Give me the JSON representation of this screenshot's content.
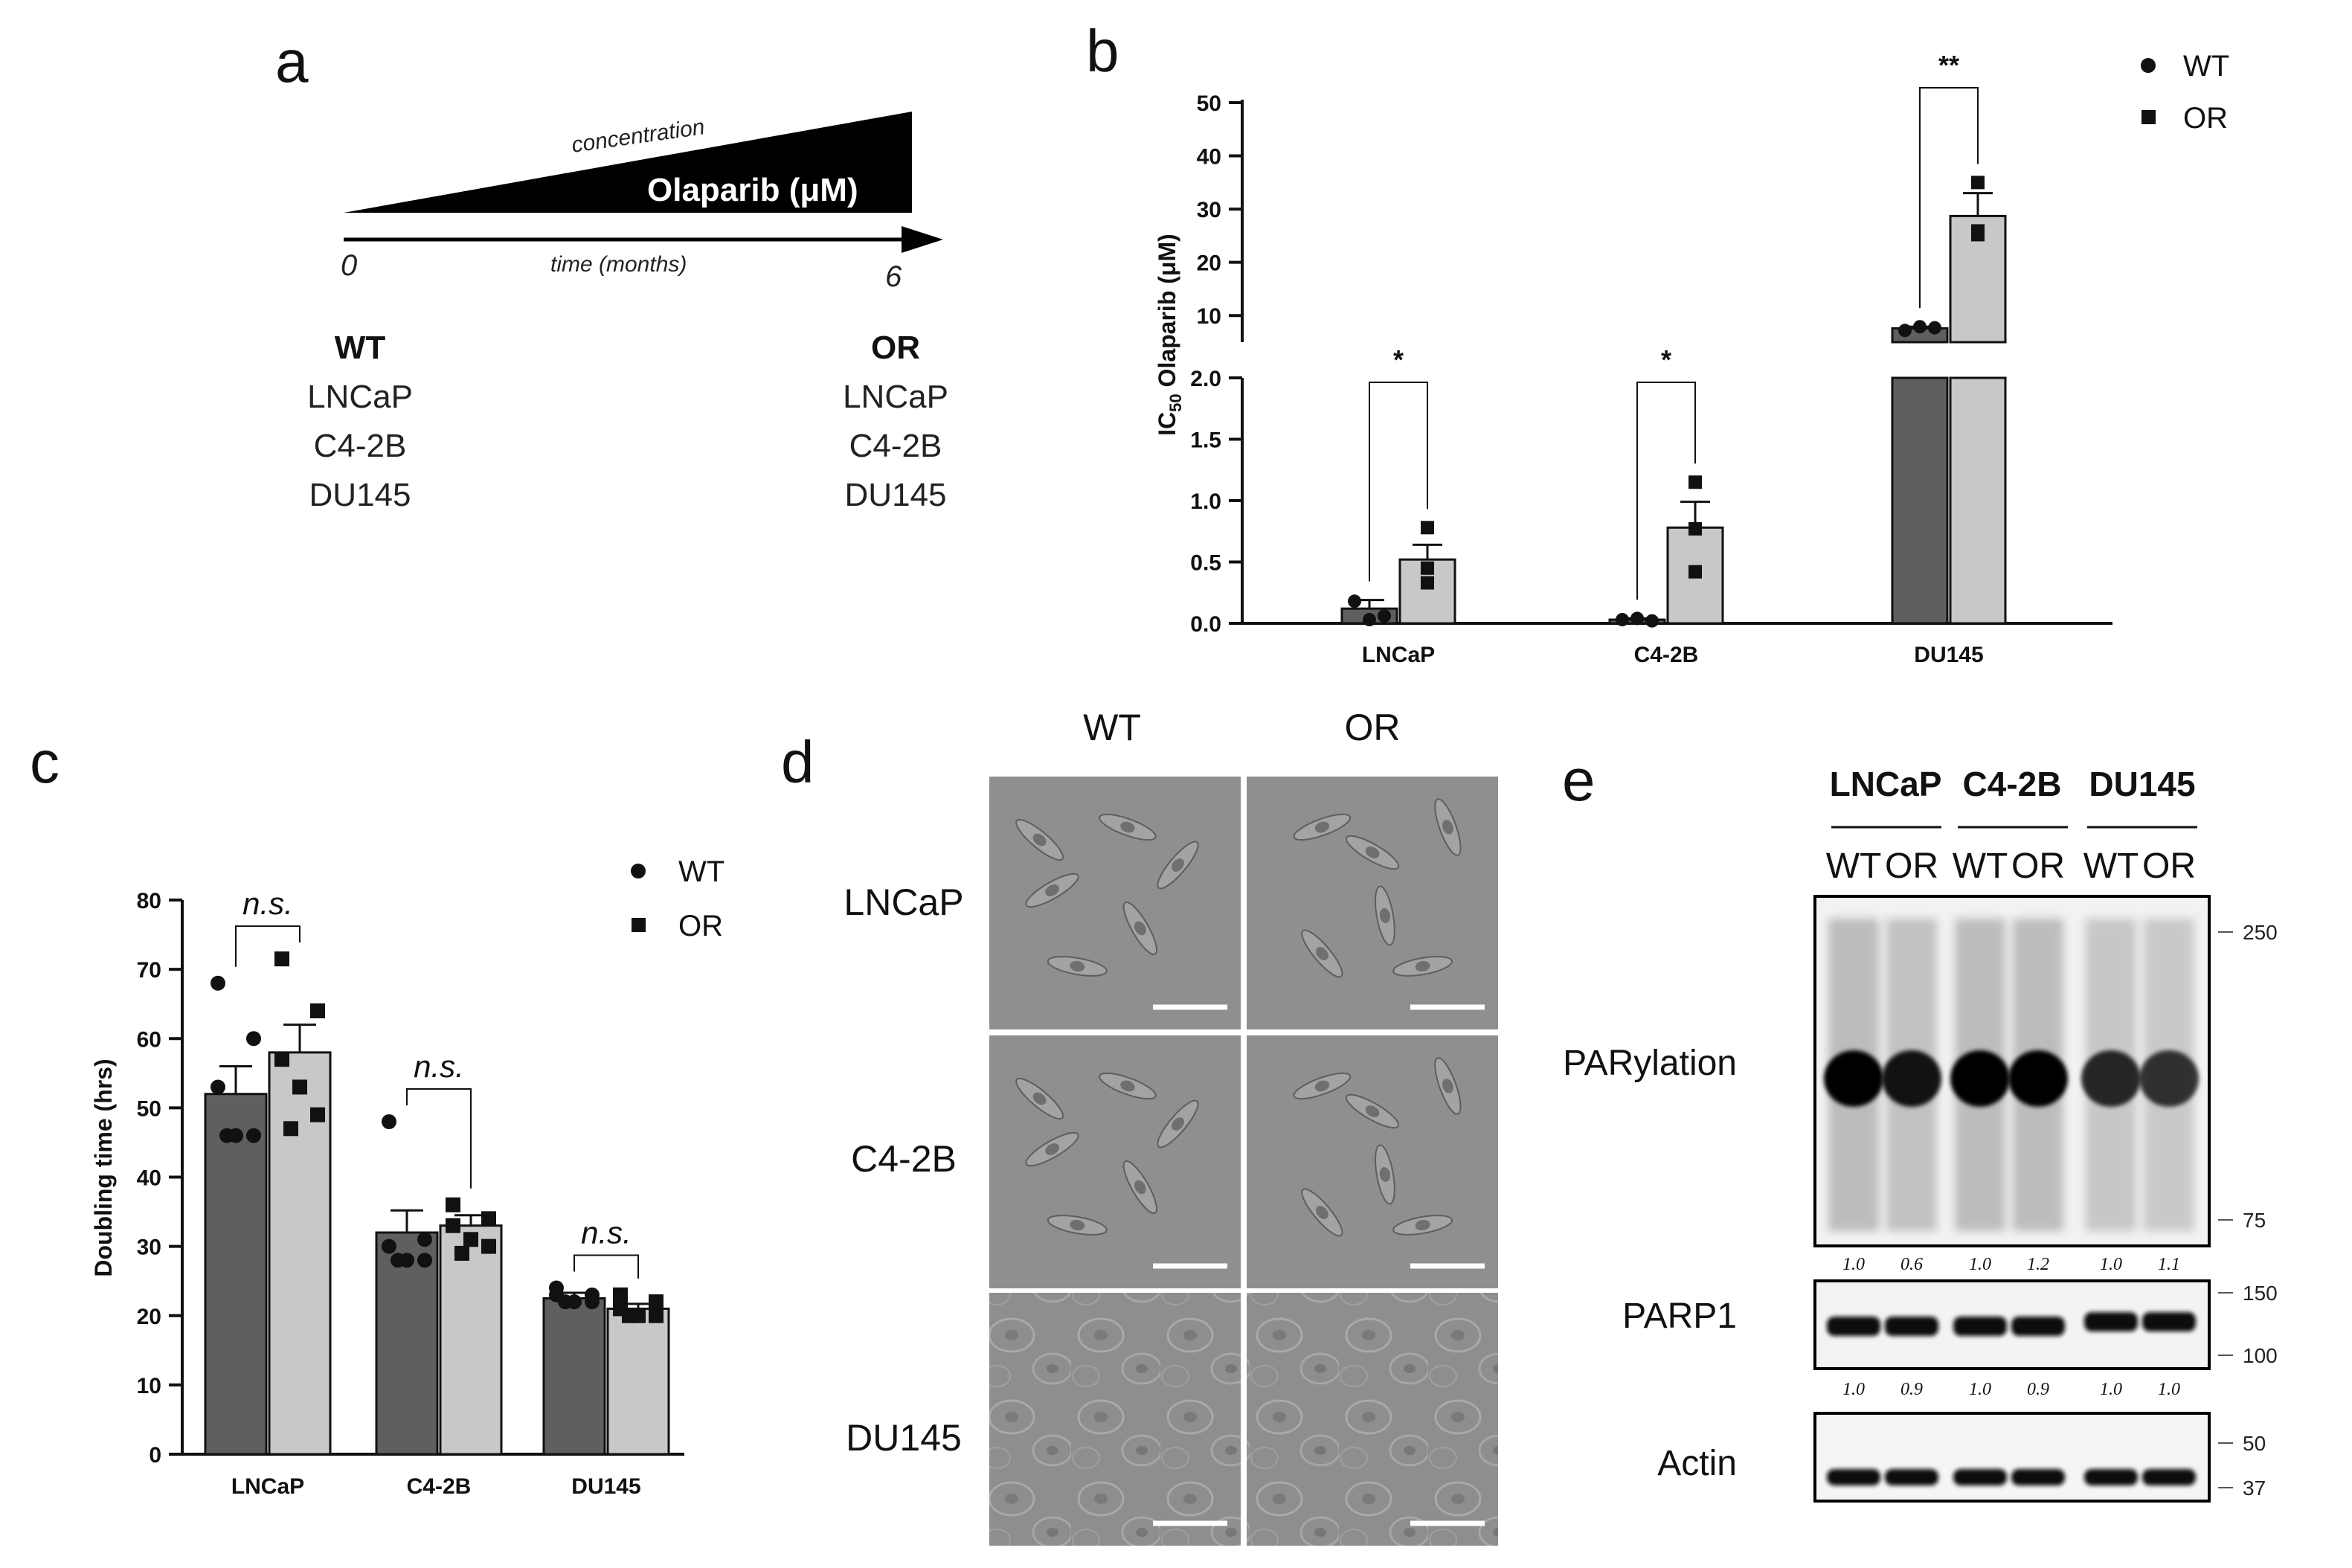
{
  "panel_a": {
    "label": "a",
    "concentration_label": "concentration",
    "drug_label": "Olaparib (μM)",
    "time_label": "time (months)",
    "time_start": "0",
    "time_end": "6",
    "wt_heading": "WT",
    "or_heading": "OR",
    "cell_lines": [
      "LNCaP",
      "C4-2B",
      "DU145"
    ]
  },
  "panel_b": {
    "label": "b",
    "legend": [
      {
        "name": "WT",
        "marker": "circle"
      },
      {
        "name": "OR",
        "marker": "square"
      }
    ],
    "significance": [
      "*",
      "*",
      "**"
    ]
  },
  "panel_c": {
    "label": "c",
    "legend": [
      {
        "name": "WT",
        "marker": "circle"
      },
      {
        "name": "OR",
        "marker": "square"
      }
    ],
    "significance": [
      "n.s.",
      "n.s.",
      "n.s."
    ]
  },
  "panel_d": {
    "label": "d",
    "columns": [
      "WT",
      "OR"
    ],
    "rows": [
      "LNCaP",
      "C4-2B",
      "DU145"
    ]
  },
  "panel_e": {
    "label": "e",
    "cell_lines": [
      "LNCaP",
      "C4-2B",
      "DU145"
    ],
    "lanes": [
      "WT",
      "OR",
      "WT",
      "OR",
      "WT",
      "OR"
    ],
    "blots": [
      {
        "name": "PARylation",
        "quant": [
          "1.0",
          "0.6",
          "1.0",
          "1.2",
          "1.0",
          "1.1"
        ],
        "markers": [
          "250",
          "75"
        ]
      },
      {
        "name": "PARP1",
        "quant": [
          "1.0",
          "0.9",
          "1.0",
          "0.9",
          "1.0",
          "1.0"
        ],
        "markers": [
          "150",
          "100"
        ]
      },
      {
        "name": "Actin",
        "quant": [],
        "markers": [
          "50",
          "37"
        ]
      }
    ]
  },
  "colors": {
    "wt_bar": "#5f5f5f",
    "or_bar": "#c8c8c8",
    "ink": "#111111",
    "micrograph": "#8f8f8f"
  },
  "chart_data": [
    {
      "type": "bar",
      "panel": "b",
      "title": "",
      "xlabel": "",
      "ylabel": "IC50 Olaparib (μM)",
      "ylabel_main": "IC",
      "ylabel_sub": "50",
      "ylabel_rest": " Olaparib (μM)",
      "categories": [
        "LNCaP",
        "C4-2B",
        "DU145"
      ],
      "series": [
        {
          "name": "WT",
          "values": [
            0.12,
            0.03,
            7.6
          ],
          "errors": [
            0.07,
            0.01,
            0.3
          ],
          "points": [
            [
              0.18,
              0.03,
              0.06
            ],
            [
              0.03,
              0.04,
              0.02
            ],
            [
              7.2,
              7.9,
              7.7
            ]
          ]
        },
        {
          "name": "OR",
          "values": [
            0.52,
            0.78,
            28.7
          ],
          "errors": [
            0.12,
            0.21,
            4.3
          ],
          "points": [
            [
              0.78,
              0.45,
              0.33
            ],
            [
              1.15,
              0.77,
              0.42
            ],
            [
              35.0,
              25.9,
              25.2
            ]
          ]
        }
      ],
      "y_lower_range": [
        0,
        2.0
      ],
      "y_upper_range": [
        5,
        50
      ],
      "y_lower_ticks": [
        "0.0",
        "0.5",
        "1.0",
        "1.5",
        "2.0"
      ],
      "y_upper_ticks": [
        "10",
        "20",
        "30",
        "40",
        "50"
      ]
    },
    {
      "type": "bar",
      "panel": "c",
      "title": "",
      "xlabel": "",
      "ylabel": "Doubling time (hrs)",
      "categories": [
        "LNCaP",
        "C4-2B",
        "DU145"
      ],
      "series": [
        {
          "name": "WT",
          "values": [
            52,
            32,
            22.5
          ],
          "errors": [
            4,
            3.2,
            0.8
          ],
          "points": [
            [
              68,
              60,
              53,
              46,
              46,
              46
            ],
            [
              48,
              31,
              30,
              28,
              28,
              28
            ],
            [
              24,
              23,
              23,
              22,
              22,
              22
            ]
          ]
        },
        {
          "name": "OR",
          "values": [
            58,
            33,
            21
          ],
          "errors": [
            4,
            1.5,
            0.7
          ],
          "points": [
            [
              71.5,
              64,
              57,
              53,
              49,
              47
            ],
            [
              36,
              34,
              33,
              31,
              30,
              29
            ],
            [
              23,
              22,
              21,
              20,
              20,
              20
            ]
          ]
        }
      ],
      "ylim": [
        0,
        80
      ],
      "yticks": [
        "0",
        "10",
        "20",
        "30",
        "40",
        "50",
        "60",
        "70",
        "80"
      ]
    }
  ]
}
